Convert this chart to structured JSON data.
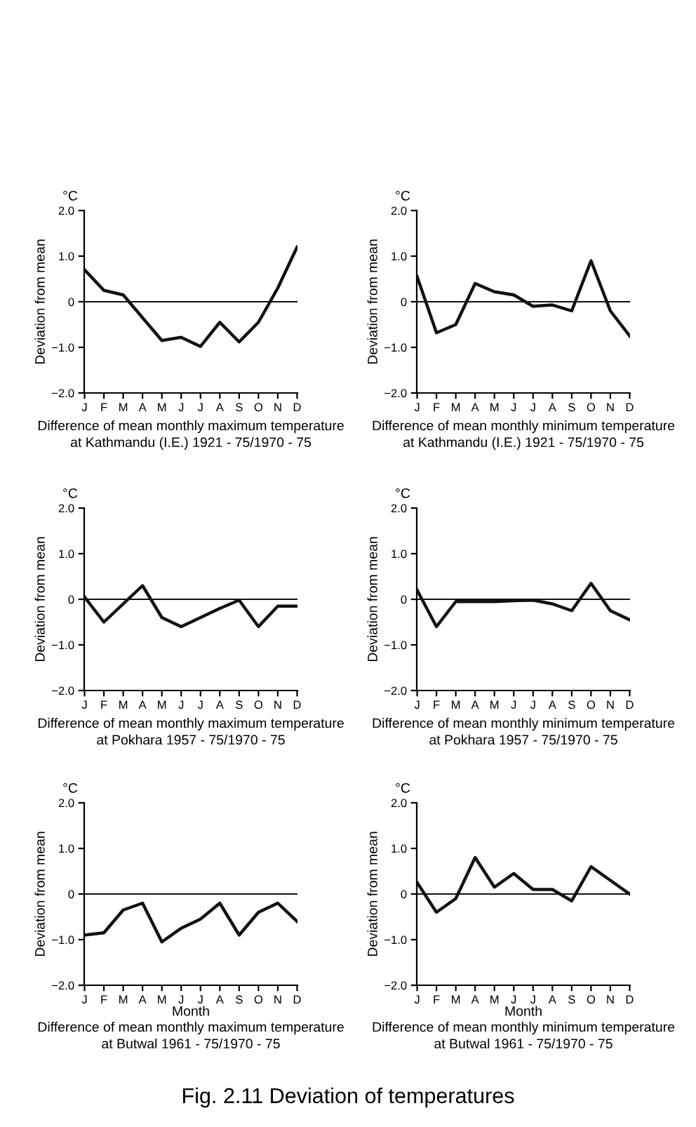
{
  "chart_data": [
    {
      "type": "line",
      "title": "Difference of mean monthly maximum temperature\nat Kathmandu (I.E.) 1921 - 75/1970 - 75",
      "ylabel": "Deviation from mean",
      "annotations": [
        "°C"
      ],
      "categories": [
        "J",
        "F",
        "M",
        "A",
        "M",
        "J",
        "J",
        "A",
        "S",
        "O",
        "N",
        "D"
      ],
      "values": [
        0.7,
        0.25,
        0.15,
        -0.35,
        -0.85,
        -0.78,
        -0.98,
        -0.45,
        -0.88,
        -0.45,
        0.3,
        1.2
      ],
      "color": "#111111",
      "ylim": [
        -2.0,
        2.0
      ],
      "yticks": [
        {
          "value": 2.0,
          "label": "2.0"
        },
        {
          "value": 1.0,
          "label": "1.0"
        },
        0,
        {
          "value": -1.0,
          "label": "−1.0"
        },
        {
          "value": -2.0,
          "label": "−2.0"
        }
      ],
      "ref_lines": [
        {
          "axis": "y",
          "value": 0
        }
      ],
      "grid": false,
      "legend": false
    },
    {
      "type": "line",
      "title": "Difference of mean monthly minimum temperature\nat Kathmandu (I.E.) 1921 - 75/1970 - 75",
      "ylabel": "Deviation from mean",
      "annotations": [
        "°C"
      ],
      "categories": [
        "J",
        "F",
        "M",
        "A",
        "M",
        "J",
        "J",
        "A",
        "S",
        "O",
        "N",
        "D"
      ],
      "values": [
        0.55,
        -0.68,
        -0.5,
        0.4,
        0.22,
        0.15,
        -0.1,
        -0.07,
        -0.2,
        0.9,
        -0.2,
        -0.75
      ],
      "color": "#111111",
      "ylim": [
        -2.0,
        2.0
      ],
      "yticks": [
        {
          "value": 2.0,
          "label": "2.0"
        },
        {
          "value": 1.0,
          "label": "1.0"
        },
        0,
        {
          "value": -1.0,
          "label": "−1.0"
        },
        {
          "value": -2.0,
          "label": "−2.0"
        }
      ],
      "ref_lines": [
        {
          "axis": "y",
          "value": 0
        }
      ],
      "grid": false,
      "legend": false
    },
    {
      "type": "line",
      "title": "Difference of mean monthly maximum temperature\nat Pokhara 1957 - 75/1970 - 75",
      "ylabel": "Deviation from mean",
      "annotations": [
        "°C"
      ],
      "categories": [
        "J",
        "F",
        "M",
        "A",
        "M",
        "J",
        "J",
        "A",
        "S",
        "O",
        "N",
        "D"
      ],
      "values": [
        0.05,
        -0.5,
        -0.1,
        0.3,
        -0.4,
        -0.6,
        -0.4,
        -0.2,
        -0.02,
        -0.6,
        -0.15,
        -0.15
      ],
      "color": "#111111",
      "ylim": [
        -2.0,
        2.0
      ],
      "yticks": [
        {
          "value": 2.0,
          "label": "2.0"
        },
        {
          "value": 1.0,
          "label": "1.0"
        },
        0,
        {
          "value": -1.0,
          "label": "−1.0"
        },
        {
          "value": -2.0,
          "label": "−2.0"
        }
      ],
      "ref_lines": [
        {
          "axis": "y",
          "value": 0
        }
      ],
      "grid": false,
      "legend": false
    },
    {
      "type": "line",
      "title": "Difference of mean monthly minimum temperature\nat Pokhara 1957 - 75/1970 - 75",
      "ylabel": "Deviation from mean",
      "annotations": [
        "°C"
      ],
      "categories": [
        "J",
        "F",
        "M",
        "A",
        "M",
        "J",
        "J",
        "A",
        "S",
        "O",
        "N",
        "D"
      ],
      "values": [
        0.2,
        -0.6,
        -0.05,
        -0.05,
        -0.05,
        -0.03,
        -0.02,
        -0.1,
        -0.25,
        0.35,
        -0.25,
        -0.45
      ],
      "color": "#111111",
      "ylim": [
        -2.0,
        2.0
      ],
      "yticks": [
        {
          "value": 2.0,
          "label": "2.0"
        },
        {
          "value": 1.0,
          "label": "1.0"
        },
        0,
        {
          "value": -1.0,
          "label": "−1.0"
        },
        {
          "value": -2.0,
          "label": "−2.0"
        }
      ],
      "ref_lines": [
        {
          "axis": "y",
          "value": 0
        }
      ],
      "grid": false,
      "legend": false
    },
    {
      "type": "line",
      "title": "Difference of mean monthly maximum temperature\nat Butwal 1961 - 75/1970 - 75",
      "xlabel": "Month",
      "ylabel": "Deviation from mean",
      "annotations": [
        "°C"
      ],
      "categories": [
        "J",
        "F",
        "M",
        "A",
        "M",
        "J",
        "J",
        "A",
        "S",
        "O",
        "N",
        "D"
      ],
      "values": [
        -0.9,
        -0.85,
        -0.35,
        -0.2,
        -1.05,
        -0.75,
        -0.55,
        -0.2,
        -0.9,
        -0.4,
        -0.2,
        -0.6
      ],
      "color": "#111111",
      "ylim": [
        -2.0,
        2.0
      ],
      "yticks": [
        {
          "value": 2.0,
          "label": "2.0"
        },
        {
          "value": 1.0,
          "label": "1.0"
        },
        0,
        {
          "value": -1.0,
          "label": "−1.0"
        },
        {
          "value": -2.0,
          "label": "−2.0"
        }
      ],
      "ref_lines": [
        {
          "axis": "y",
          "value": 0
        }
      ],
      "grid": false,
      "legend": false
    },
    {
      "type": "line",
      "title": "Difference of mean monthly minimum temperature\nat Butwal 1961 - 75/1970 - 75",
      "xlabel": "Month",
      "ylabel": "Deviation from mean",
      "annotations": [
        "°C",
        "Fig. 2.11 Deviation of temperatures"
      ],
      "categories": [
        "J",
        "F",
        "M",
        "A",
        "M",
        "J",
        "J",
        "A",
        "S",
        "O",
        "N",
        "D"
      ],
      "values": [
        0.25,
        -0.4,
        -0.1,
        0.8,
        0.15,
        0.45,
        0.1,
        0.1,
        -0.15,
        0.6,
        0.3,
        0.0
      ],
      "color": "#111111",
      "ylim": [
        -2.0,
        2.0
      ],
      "yticks": [
        {
          "value": 2.0,
          "label": "2.0"
        },
        {
          "value": 1.0,
          "label": "1.0"
        },
        0,
        {
          "value": -1.0,
          "label": "−1.0"
        },
        {
          "value": -2.0,
          "label": "−2.0"
        }
      ],
      "ref_lines": [
        {
          "axis": "y",
          "value": 0
        }
      ],
      "grid": false,
      "legend": false
    }
  ]
}
